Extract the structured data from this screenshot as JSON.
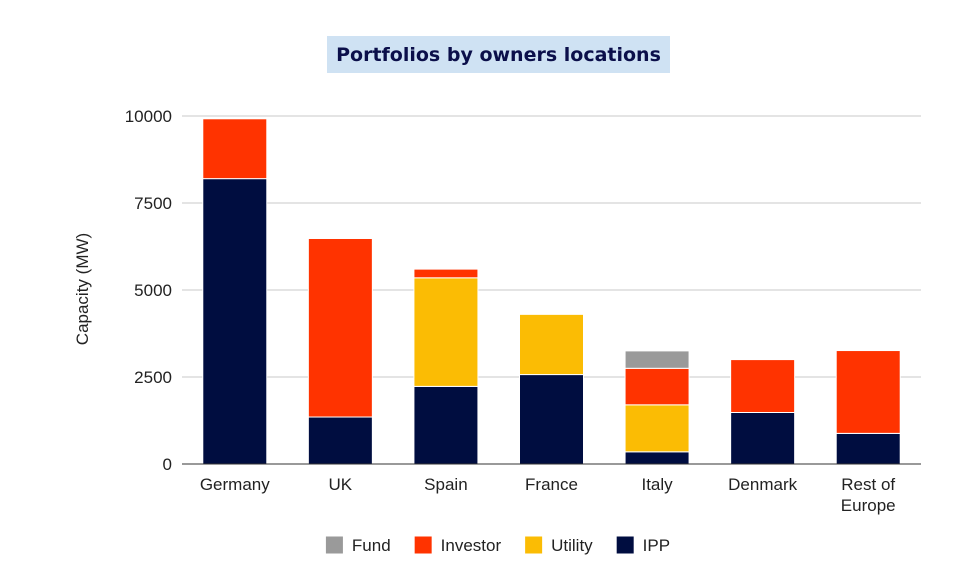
{
  "chart_data": {
    "type": "bar",
    "stacked": true,
    "title": "Portfolios by owners locations",
    "xlabel": "",
    "ylabel": "Capacity (MW)",
    "ylim": [
      0,
      10000
    ],
    "yticks": [
      0,
      2500,
      5000,
      7500,
      10000
    ],
    "grid": true,
    "legend_position": "bottom",
    "categories": [
      [
        "Germany"
      ],
      [
        "UK"
      ],
      [
        "Spain"
      ],
      [
        "France"
      ],
      [
        "Italy"
      ],
      [
        "Denmark"
      ],
      [
        "Rest of",
        "Europe"
      ]
    ],
    "series": [
      {
        "name": "IPP",
        "color": "#000d40",
        "values": [
          8200,
          1350,
          2230,
          2570,
          350,
          1480,
          880
        ]
      },
      {
        "name": "Utility",
        "color": "#fbbc04",
        "values": [
          0,
          0,
          3120,
          1730,
          1350,
          0,
          0
        ]
      },
      {
        "name": "Investor",
        "color": "#ff3300",
        "values": [
          1720,
          5130,
          250,
          0,
          1050,
          1520,
          2380
        ]
      },
      {
        "name": "Fund",
        "color": "#9a9a9a",
        "values": [
          0,
          0,
          0,
          0,
          500,
          0,
          0
        ]
      }
    ],
    "legend_order": [
      "Fund",
      "Investor",
      "Utility",
      "IPP"
    ]
  }
}
